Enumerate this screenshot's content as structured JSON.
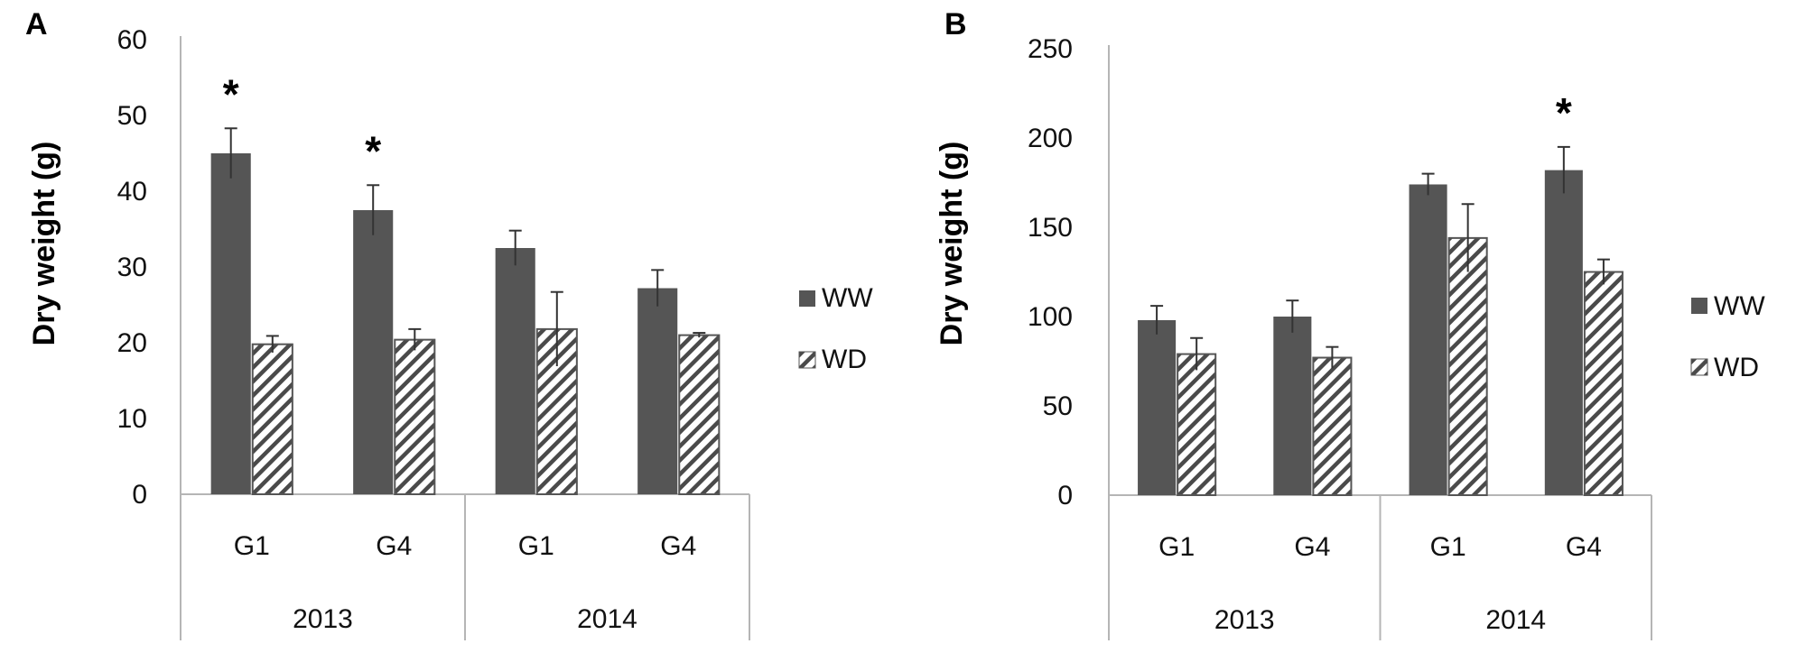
{
  "figure": {
    "panels": [
      {
        "label": "A"
      },
      {
        "label": "B"
      }
    ]
  },
  "chart_data": [
    {
      "type": "bar",
      "panel": "A",
      "ylabel": "Dry weight (g)",
      "xlabel": "",
      "ylim": [
        0,
        60
      ],
      "yticks": [
        0,
        10,
        20,
        30,
        40,
        50,
        60
      ],
      "categories": [
        "G1",
        "G4",
        "G1",
        "G4"
      ],
      "groups": [
        {
          "label": "2013",
          "span": 2
        },
        {
          "label": "2014",
          "span": 2
        }
      ],
      "series": [
        {
          "name": "WW",
          "color": "#555555",
          "pattern": "solid",
          "values": [
            45.0,
            37.5,
            32.5,
            27.2
          ],
          "errors": [
            3.3,
            3.3,
            2.3,
            2.4
          ]
        },
        {
          "name": "WD",
          "color": "#555555",
          "pattern": "hatch",
          "values": [
            19.8,
            20.4,
            21.8,
            21.0
          ],
          "errors": [
            1.1,
            1.4,
            4.9,
            0.3
          ]
        }
      ],
      "significance": [
        "*",
        "*",
        "",
        ""
      ],
      "legend": "right",
      "grid": false
    },
    {
      "type": "bar",
      "panel": "B",
      "ylabel": "Dry weight (g)",
      "xlabel": "",
      "ylim": [
        0,
        250
      ],
      "yticks": [
        0,
        50,
        100,
        150,
        200,
        250
      ],
      "categories": [
        "G1",
        "G4",
        "G1",
        "G4"
      ],
      "groups": [
        {
          "label": "2013",
          "span": 2
        },
        {
          "label": "2014",
          "span": 2
        }
      ],
      "series": [
        {
          "name": "WW",
          "color": "#555555",
          "pattern": "solid",
          "values": [
            98,
            100,
            174,
            182
          ],
          "errors": [
            8,
            9,
            6,
            13
          ]
        },
        {
          "name": "WD",
          "color": "#555555",
          "pattern": "hatch",
          "values": [
            79,
            77,
            144,
            125
          ],
          "errors": [
            9,
            6,
            19,
            7
          ]
        }
      ],
      "significance": [
        "",
        "",
        "",
        "*"
      ],
      "legend": "right",
      "grid": false
    }
  ]
}
